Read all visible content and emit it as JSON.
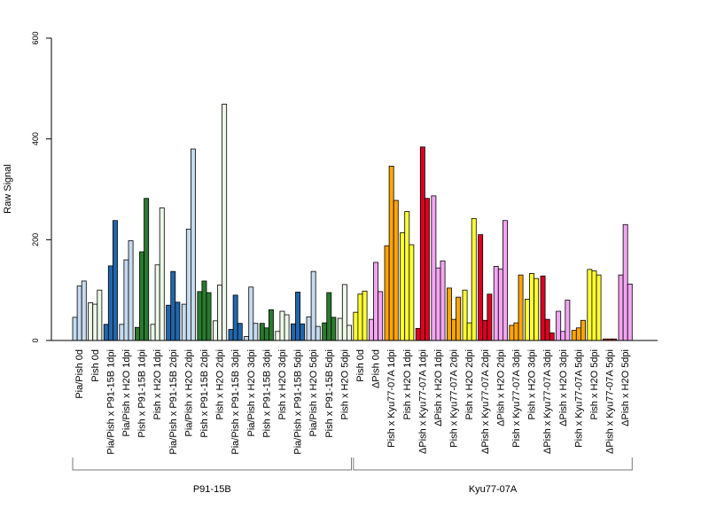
{
  "chart_data": {
    "type": "bar",
    "ylabel": "Raw Signal",
    "xlabel": "",
    "ylim": [
      0,
      600
    ],
    "yticks": [
      0,
      200,
      400,
      600
    ],
    "grid": false,
    "legend": "none",
    "categories": [
      "Pia/Pish 0d",
      "Pish 0d",
      "Pia/Pish x P91-15B 1dpi",
      "Pia/Pish x H2O 1dpi",
      "Pish x P91-15B 1dpi",
      "Pish x H2O 1dpi",
      "Pia/Pish x P91-15B 2dpi",
      "Pia/Pish x H2O 2dpi",
      "Pish x P91-15B 2dpi",
      "Pish x H2O 2dpi",
      "Pia/Pish x P91-15B 3dpi",
      "Pia/Pish x H2O 3dpi",
      "Pish x P91-15B 3dpi",
      "Pish x H2O 3dpi",
      "Pia/Pish x P91-15B 5dpi",
      "Pia/Pish x H2O 5dpi",
      "Pish x P91-15B 5dpi",
      "Pish x H2O 5dpi",
      "Pish 0d",
      "ΔPish 0d",
      "Pish x Kyu77-07A 1dpi",
      "Pish x H2O 1dpi",
      "ΔPish x Kyu77-07A 1dpi",
      "ΔPish x H2O 1dpi",
      "Pish x Kyu77-07A 2dpi",
      "Pish x H2O 2dpi",
      "ΔPish x Kyu77-07A 2dpi",
      "ΔPish x H2O 2dpi",
      "Pish x Kyu77-07A 3dpi",
      "Pish x H2O 3dpi",
      "ΔPish x Kyu77-07A 3dpi",
      "ΔPish x H2O 3dpi",
      "Pish x Kyu77-07A 5dpi",
      "Pish x H2O 5dpi",
      "ΔPish x Kyu77-07A 5dpi",
      "ΔPish x H2O 5dpi"
    ],
    "values": [
      [
        46,
        108,
        118
      ],
      [
        75,
        72,
        100
      ],
      [
        32,
        148,
        238
      ],
      [
        32,
        160,
        198
      ],
      [
        26,
        176,
        282
      ],
      [
        32,
        150,
        263
      ],
      [
        70,
        137,
        76
      ],
      [
        72,
        221,
        380
      ],
      [
        97,
        118,
        95
      ],
      [
        39,
        110,
        469
      ],
      [
        22,
        90,
        34
      ],
      [
        8,
        106,
        34
      ],
      [
        34,
        25,
        61
      ],
      [
        18,
        58,
        51
      ],
      [
        33,
        96,
        33
      ],
      [
        47,
        137,
        28
      ],
      [
        35,
        95,
        46
      ],
      [
        44,
        111,
        30
      ],
      [
        56,
        92,
        98
      ],
      [
        42,
        155,
        97
      ],
      [
        188,
        346,
        278
      ],
      [
        214,
        256,
        190
      ],
      [
        24,
        384,
        282
      ],
      [
        287,
        144,
        158
      ],
      [
        104,
        42,
        86
      ],
      [
        100,
        35,
        242
      ],
      [
        210,
        40,
        92
      ],
      [
        147,
        142,
        238
      ],
      [
        30,
        35,
        130
      ],
      [
        82,
        133,
        123
      ],
      [
        128,
        42,
        15
      ],
      [
        58,
        18,
        80
      ],
      [
        20,
        25,
        40
      ],
      [
        141,
        138,
        130
      ],
      [
        3,
        3,
        3
      ],
      [
        130,
        230,
        112
      ]
    ],
    "bar_colors": [
      "#c6dbef",
      "#edf8e9",
      "#2166ac",
      "#c6dbef",
      "#2a7a2e",
      "#edf8e9",
      "#2166ac",
      "#c6dbef",
      "#2a7a2e",
      "#edf8e9",
      "#2166ac",
      "#c6dbef",
      "#2a7a2e",
      "#edf8e9",
      "#2166ac",
      "#c6dbef",
      "#2a7a2e",
      "#edf8e9",
      "#ffff33",
      "#f4a6f0",
      "#ffa500",
      "#ffff33",
      "#dd0022",
      "#f4a6f0",
      "#ffa500",
      "#ffff33",
      "#dd0022",
      "#f4a6f0",
      "#ffa500",
      "#ffff33",
      "#dd0022",
      "#f4a6f0",
      "#ffa500",
      "#ffff33",
      "#dd0022",
      "#f4a6f0"
    ],
    "groups": [
      {
        "label": "P91-15B",
        "start": 0,
        "end": 17
      },
      {
        "label": "Kyu77-07A",
        "start": 18,
        "end": 35
      }
    ]
  }
}
